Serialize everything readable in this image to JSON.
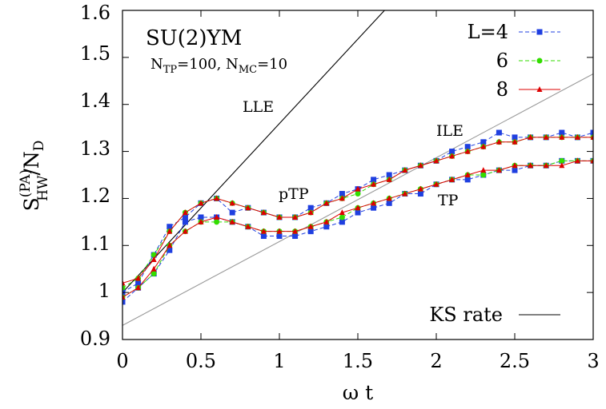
{
  "chart_data": {
    "type": "line",
    "title": "SU(2)YM",
    "subtitle": {
      "n_tp": "N",
      "n_tp_sub": "TP",
      "n_tp_val": "=100, N",
      "n_mc_sub": "MC",
      "n_mc_val": "=10"
    },
    "xlabel": "ω t",
    "ylabel": {
      "main": "S",
      "sup": "(PA)",
      "sub": "HW",
      "slash": "/N",
      "sub2": "D"
    },
    "xlim": [
      0,
      3
    ],
    "ylim": [
      0.9,
      1.6
    ],
    "xticks": [
      "0",
      "0.5",
      "1",
      "1.5",
      "2",
      "2.5",
      "3"
    ],
    "yticks": [
      "0.9",
      "1",
      "1.1",
      "1.2",
      "1.3",
      "1.4",
      "1.5",
      "1.6"
    ],
    "grid": false,
    "legend_position": "top-right",
    "annotations": {
      "lle": "LLE",
      "ile": "ILE",
      "ptp": "pTP",
      "tp": "TP"
    },
    "colors": {
      "L4": "#1f3fe0",
      "L6": "#33dd00",
      "L8": "#dd0000",
      "KS": "#000000"
    },
    "x": [
      0,
      0.1,
      0.2,
      0.3,
      0.4,
      0.5,
      0.6,
      0.7,
      0.8,
      0.9,
      1.0,
      1.1,
      1.2,
      1.3,
      1.4,
      1.5,
      1.6,
      1.7,
      1.8,
      1.9,
      2.0,
      2.1,
      2.2,
      2.3,
      2.4,
      2.5,
      2.6,
      2.7,
      2.8,
      2.9,
      3.0
    ],
    "series": [
      {
        "name": "L=4",
        "group": "pTP",
        "marker": "square",
        "dash": "dashed",
        "color": "#1f3fe0",
        "values": [
          1.0,
          1.02,
          1.08,
          1.14,
          1.16,
          1.19,
          1.2,
          1.17,
          1.18,
          1.17,
          1.16,
          1.16,
          1.18,
          1.19,
          1.21,
          1.22,
          1.24,
          1.25,
          1.26,
          1.27,
          1.28,
          1.3,
          1.31,
          1.32,
          1.34,
          1.33,
          1.33,
          1.33,
          1.34,
          1.33,
          1.34
        ]
      },
      {
        "name": "6",
        "group": "pTP",
        "marker": "circle",
        "dash": "dashed",
        "color": "#33dd00",
        "values": [
          1.01,
          1.03,
          1.08,
          1.13,
          1.17,
          1.19,
          1.2,
          1.19,
          1.18,
          1.17,
          1.16,
          1.16,
          1.17,
          1.19,
          1.2,
          1.21,
          1.23,
          1.24,
          1.26,
          1.27,
          1.28,
          1.29,
          1.3,
          1.31,
          1.32,
          1.32,
          1.33,
          1.33,
          1.33,
          1.33,
          1.33
        ]
      },
      {
        "name": "8",
        "group": "pTP",
        "marker": "triangle",
        "dash": "solid",
        "color": "#dd0000",
        "values": [
          1.02,
          1.03,
          1.07,
          1.13,
          1.17,
          1.19,
          1.2,
          1.19,
          1.18,
          1.17,
          1.16,
          1.16,
          1.17,
          1.19,
          1.2,
          1.22,
          1.23,
          1.24,
          1.26,
          1.27,
          1.28,
          1.29,
          1.3,
          1.31,
          1.32,
          1.32,
          1.33,
          1.33,
          1.33,
          1.33,
          1.33
        ]
      },
      {
        "name": "L=4",
        "group": "TP",
        "marker": "square",
        "dash": "dashed",
        "color": "#1f3fe0",
        "values": [
          0.98,
          1.01,
          1.04,
          1.09,
          1.15,
          1.16,
          1.16,
          1.15,
          1.14,
          1.12,
          1.12,
          1.12,
          1.13,
          1.14,
          1.15,
          1.17,
          1.18,
          1.19,
          1.21,
          1.21,
          1.23,
          1.24,
          1.24,
          1.25,
          1.26,
          1.26,
          1.27,
          1.27,
          1.28,
          1.28,
          1.28
        ]
      },
      {
        "name": "6",
        "group": "TP",
        "marker": "circle",
        "dash": "dashed",
        "color": "#33dd00",
        "values": [
          0.99,
          1.01,
          1.04,
          1.1,
          1.13,
          1.15,
          1.15,
          1.15,
          1.14,
          1.13,
          1.13,
          1.13,
          1.14,
          1.15,
          1.16,
          1.18,
          1.19,
          1.2,
          1.21,
          1.22,
          1.23,
          1.24,
          1.25,
          1.25,
          1.26,
          1.27,
          1.27,
          1.27,
          1.28,
          1.28,
          1.28
        ]
      },
      {
        "name": "8",
        "group": "TP",
        "marker": "triangle",
        "dash": "solid",
        "color": "#dd0000",
        "values": [
          0.99,
          1.01,
          1.05,
          1.1,
          1.13,
          1.15,
          1.16,
          1.15,
          1.14,
          1.13,
          1.13,
          1.13,
          1.14,
          1.15,
          1.17,
          1.18,
          1.19,
          1.2,
          1.21,
          1.22,
          1.23,
          1.24,
          1.25,
          1.26,
          1.26,
          1.27,
          1.27,
          1.27,
          1.27,
          1.28,
          1.28
        ]
      }
    ],
    "reference_lines": [
      {
        "name": "KS rate",
        "label": "LLE",
        "color": "#000000",
        "x": [
          0,
          1.67
        ],
        "y": [
          1.0,
          1.6
        ]
      },
      {
        "name": "KS rate",
        "label": "ILE",
        "color": "#999999",
        "x": [
          0,
          3
        ],
        "y": [
          0.93,
          1.465
        ]
      }
    ],
    "legend": [
      "L=4",
      "6",
      "8",
      "KS rate"
    ]
  }
}
